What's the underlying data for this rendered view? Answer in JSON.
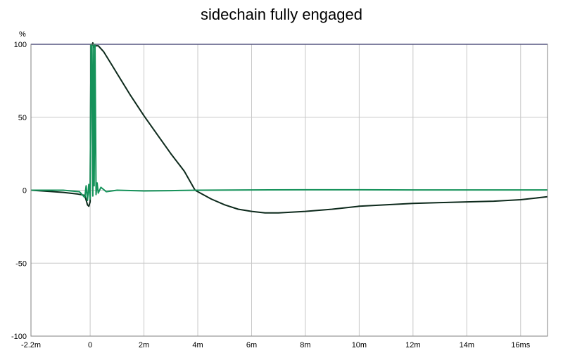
{
  "chart_data": {
    "type": "line",
    "title": "sidechain fully engaged",
    "ylabel": "%",
    "xlabel": "",
    "x_unit": "ms",
    "xlim": [
      -2.2,
      17.0
    ],
    "ylim": [
      -100,
      100
    ],
    "grid": true,
    "legend": "none",
    "x_ticks": [
      {
        "value": -2.2,
        "label": "-2.2m"
      },
      {
        "value": 0,
        "label": "0"
      },
      {
        "value": 2,
        "label": "2m"
      },
      {
        "value": 4,
        "label": "4m"
      },
      {
        "value": 6,
        "label": "6m"
      },
      {
        "value": 8,
        "label": "8m"
      },
      {
        "value": 10,
        "label": "10m"
      },
      {
        "value": 12,
        "label": "12m"
      },
      {
        "value": 14,
        "label": "14m"
      },
      {
        "value": 16,
        "label": "16ms"
      }
    ],
    "y_ticks": [
      {
        "value": 100,
        "label": "100"
      },
      {
        "value": 50,
        "label": "50"
      },
      {
        "value": 0,
        "label": "0"
      },
      {
        "value": -50,
        "label": "-50"
      },
      {
        "value": -100,
        "label": "-100"
      }
    ],
    "series": [
      {
        "color": "#000080",
        "x": [
          -2.2,
          17.0
        ],
        "y": [
          100,
          100
        ]
      },
      {
        "color": "#0d2a1c",
        "x": [
          -2.2,
          -1.5,
          -1.0,
          -0.5,
          -0.2,
          -0.1,
          -0.05,
          0.0,
          0.03,
          0.06,
          0.1,
          0.15,
          0.2,
          0.3,
          0.5,
          0.8,
          1.0,
          1.5,
          2.0,
          2.5,
          3.0,
          3.5,
          3.9,
          4.5,
          5.0,
          5.5,
          6.0,
          6.5,
          7.0,
          8.0,
          9.0,
          10.0,
          11.0,
          12.0,
          13.0,
          14.0,
          15.0,
          16.0,
          17.0
        ],
        "y": [
          0,
          -0.8,
          -1.5,
          -2.5,
          -3.5,
          -10,
          -11,
          -8,
          100,
          99,
          101,
          98,
          99,
          99,
          95,
          86,
          80,
          65,
          51,
          38,
          25,
          13,
          0,
          -6,
          -10,
          -13,
          -14.5,
          -15.5,
          -15.5,
          -14.5,
          -13,
          -11,
          -10,
          -9,
          -8.5,
          -8,
          -7.5,
          -6.5,
          -4.5
        ]
      },
      {
        "color": "#15925a",
        "x": [
          -2.2,
          -1.0,
          -0.4,
          -0.3,
          -0.2,
          -0.15,
          -0.1,
          -0.05,
          0.0,
          0.03,
          0.06,
          0.1,
          0.12,
          0.15,
          0.18,
          0.22,
          0.26,
          0.3,
          0.4,
          0.6,
          1.0,
          2.0,
          3.0,
          4.0,
          6.0,
          8.0,
          10.0,
          12.0,
          14.0,
          16.0,
          17.0
        ],
        "y": [
          0,
          0,
          -1,
          -3,
          -5,
          3,
          -7,
          4,
          -6,
          100,
          99,
          -4,
          100,
          3,
          100,
          -3,
          5,
          -2,
          2,
          -1,
          0,
          -0.5,
          -0.3,
          0,
          0.2,
          0.3,
          0.3,
          0.2,
          0.2,
          0.2,
          0.2
        ]
      }
    ]
  }
}
